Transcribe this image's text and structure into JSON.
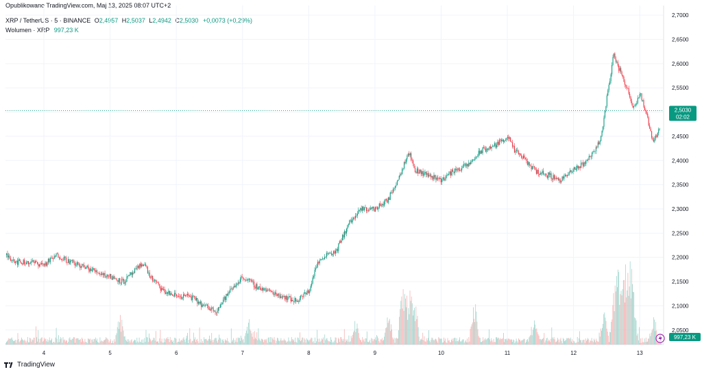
{
  "header": {
    "published": "Opublikowano TradingView.com, Maj 13, 2025 08:07 UTC+2"
  },
  "legend": {
    "symbol": "XRP / TetherUS · 5 · BINANCE",
    "o_label": "O",
    "o": "2,4957",
    "h_label": "H",
    "h": "2,5037",
    "l_label": "L",
    "l": "2,4942",
    "c_label": "C",
    "c": "2,5030",
    "change": "+0,0073 (+0,29%)",
    "volume_label": "Wolumen · XRP",
    "volume_value": "997,23 K"
  },
  "price_badge": {
    "price": "2,5030",
    "countdown": "02:02"
  },
  "volume_badge": "997,23 K",
  "footer": {
    "brand": "TradingView"
  },
  "colors": {
    "up": "#089981",
    "down": "#f23645",
    "vol_up": "#9fd4cc",
    "vol_down": "#f5b2b2",
    "grid": "#f0f3fa",
    "axis_text": "#131722"
  },
  "chart_data": {
    "type": "candlestick",
    "title": "XRP / TetherUS · 5 · BINANCE",
    "ylim": [
      2.02,
      2.72
    ],
    "y_ticks": [
      "2,0500",
      "2,1000",
      "2,1500",
      "2,2000",
      "2,2500",
      "2,3000",
      "2,3500",
      "2,4000",
      "2,4500",
      "2,5000",
      "2,5500",
      "2,6000",
      "2,6500",
      "2,7000"
    ],
    "y_tick_values": [
      2.05,
      2.1,
      2.15,
      2.2,
      2.25,
      2.3,
      2.35,
      2.4,
      2.45,
      2.5,
      2.55,
      2.6,
      2.65,
      2.7
    ],
    "x_ticks": [
      "4",
      "5",
      "6",
      "7",
      "8",
      "9",
      "10",
      "11",
      "12",
      "13"
    ],
    "x_domain": [
      3.42,
      13.36
    ],
    "last_price": 2.503,
    "price_path_x": [
      3.42,
      3.6,
      3.8,
      4.0,
      4.2,
      4.4,
      4.6,
      4.8,
      5.0,
      5.2,
      5.4,
      5.5,
      5.6,
      5.8,
      6.0,
      6.2,
      6.4,
      6.6,
      6.8,
      7.0,
      7.2,
      7.4,
      7.6,
      7.8,
      8.0,
      8.1,
      8.2,
      8.3,
      8.4,
      8.6,
      8.8,
      9.0,
      9.2,
      9.4,
      9.5,
      9.6,
      9.8,
      10.0,
      10.2,
      10.4,
      10.6,
      10.8,
      11.0,
      11.1,
      11.2,
      11.4,
      11.6,
      11.8,
      12.0,
      12.2,
      12.4,
      12.5,
      12.6,
      12.65,
      12.8,
      12.9,
      13.0,
      13.1,
      13.2,
      13.3,
      13.36
    ],
    "price_path_y": [
      2.205,
      2.19,
      2.19,
      2.185,
      2.205,
      2.19,
      2.18,
      2.17,
      2.16,
      2.15,
      2.175,
      2.19,
      2.16,
      2.13,
      2.12,
      2.12,
      2.1,
      2.09,
      2.13,
      2.16,
      2.14,
      2.13,
      2.12,
      2.11,
      2.13,
      2.18,
      2.2,
      2.21,
      2.21,
      2.27,
      2.3,
      2.3,
      2.32,
      2.38,
      2.42,
      2.38,
      2.37,
      2.36,
      2.38,
      2.39,
      2.42,
      2.43,
      2.45,
      2.42,
      2.41,
      2.38,
      2.37,
      2.36,
      2.38,
      2.4,
      2.44,
      2.53,
      2.62,
      2.6,
      2.55,
      2.51,
      2.54,
      2.49,
      2.44,
      2.47,
      2.503
    ],
    "volume_spikes_x": [
      5.15,
      7.1,
      8.7,
      9.2,
      9.42,
      9.52,
      9.6,
      10.5,
      11.4,
      12.45,
      12.62,
      12.7,
      12.78,
      12.85,
      12.9,
      13.2
    ],
    "volume_spikes_h": [
      0.35,
      0.3,
      0.28,
      0.35,
      0.9,
      0.65,
      0.55,
      0.55,
      0.35,
      0.45,
      0.75,
      0.95,
      0.85,
      0.8,
      0.6,
      0.3
    ],
    "volume_axis_label": "997,23 K"
  }
}
